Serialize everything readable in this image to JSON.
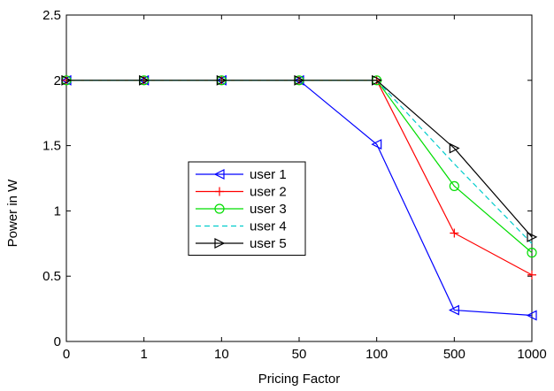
{
  "chart_data": {
    "type": "line",
    "title": "",
    "xlabel": "Pricing Factor",
    "ylabel": "Power in W",
    "categories": [
      "0",
      "1",
      "10",
      "50",
      "100",
      "500",
      "1000"
    ],
    "ylim": [
      0,
      2.5
    ],
    "yticks": [
      "0",
      "0.5",
      "1",
      "1.5",
      "2",
      "2.5"
    ],
    "grid": false,
    "legend_position": "center-left",
    "series": [
      {
        "name": "user 1",
        "color": "#0000ff",
        "dash": "solid",
        "marker": "triangle-left",
        "values": [
          2,
          2,
          2,
          2,
          1.51,
          0.24,
          0.2
        ]
      },
      {
        "name": "user 2",
        "color": "#ff0000",
        "dash": "solid",
        "marker": "plus",
        "values": [
          2,
          2,
          2,
          2,
          2,
          0.83,
          0.51
        ]
      },
      {
        "name": "user 3",
        "color": "#00dd00",
        "dash": "solid",
        "marker": "circle",
        "values": [
          2,
          2,
          2,
          2,
          2,
          1.19,
          0.68
        ]
      },
      {
        "name": "user 4",
        "color": "#00cccc",
        "dash": "dashed",
        "marker": "none",
        "values": [
          2,
          2,
          2,
          2,
          2,
          1.36,
          0.75
        ]
      },
      {
        "name": "user 5",
        "color": "#000000",
        "dash": "solid",
        "marker": "triangle-right",
        "values": [
          2,
          2,
          2,
          2,
          2,
          1.48,
          0.8
        ]
      }
    ]
  }
}
